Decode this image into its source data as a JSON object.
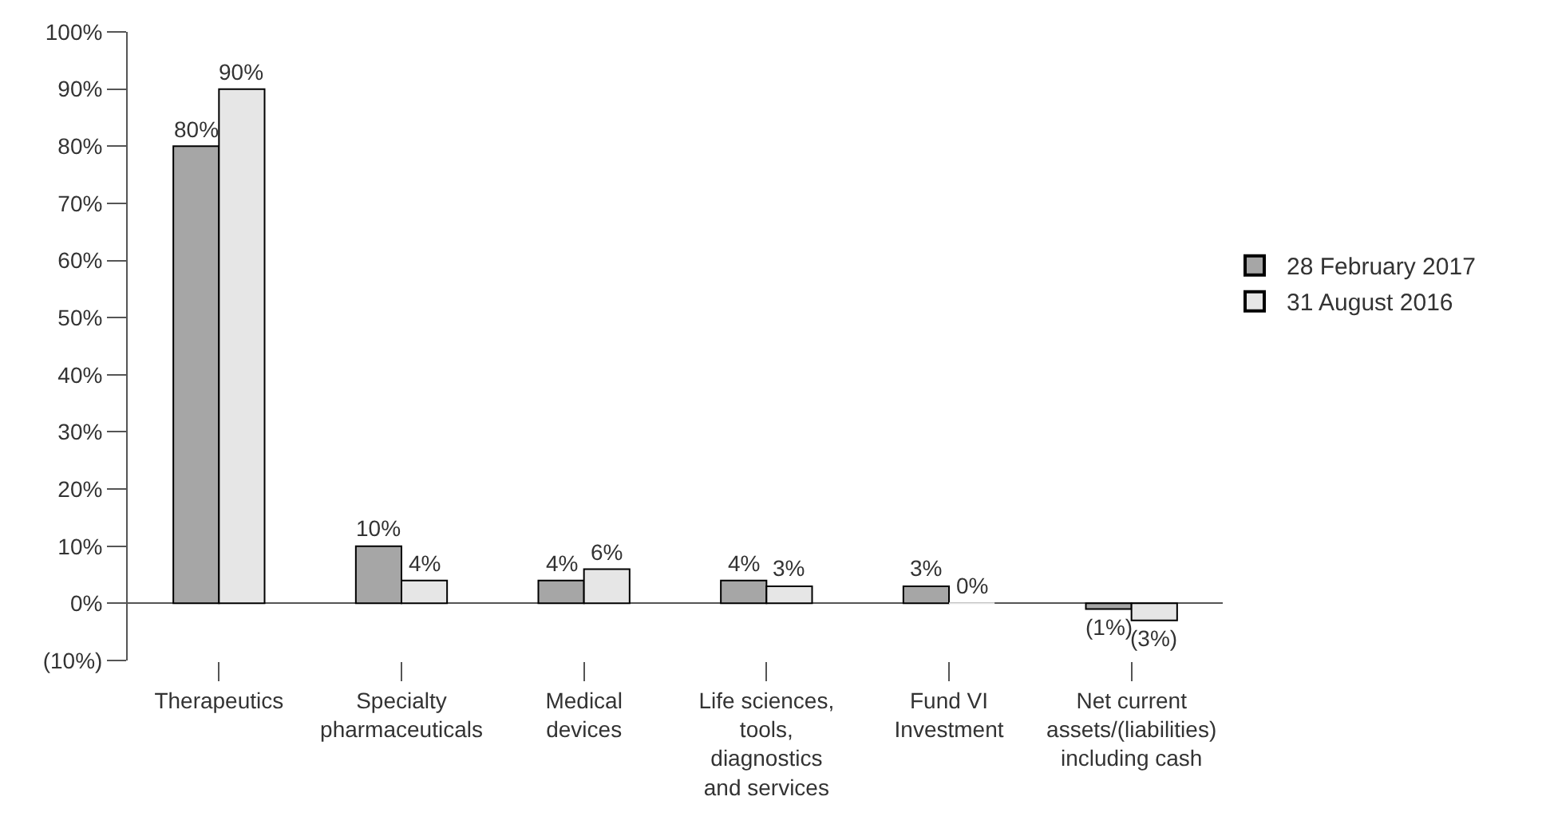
{
  "chart_data": {
    "type": "bar",
    "categories": [
      "Therapeutics",
      "Specialty pharmaceuticals",
      "Medical devices",
      "Life sciences, tools, diagnostics and services",
      "Fund VI Investment",
      "Net current assets/(liabilities) including cash"
    ],
    "series": [
      {
        "name": "28 February 2017",
        "color": "#a6a6a6",
        "values": [
          80,
          10,
          4,
          4,
          3,
          -1
        ],
        "value_labels": [
          "80%",
          "10%",
          "4%",
          "4%",
          "3%",
          "(1%)"
        ]
      },
      {
        "name": "31 August 2016",
        "color": "#e6e6e6",
        "values": [
          90,
          4,
          6,
          3,
          0,
          -3
        ],
        "value_labels": [
          "90%",
          "4%",
          "6%",
          "3%",
          "0%",
          "(3%)"
        ]
      }
    ],
    "ylim": [
      -10,
      100
    ],
    "yticks": [
      {
        "value": -10,
        "label": "(10%)"
      },
      {
        "value": 0,
        "label": "0%"
      },
      {
        "value": 10,
        "label": "10%"
      },
      {
        "value": 20,
        "label": "20%"
      },
      {
        "value": 30,
        "label": "30%"
      },
      {
        "value": 40,
        "label": "40%"
      },
      {
        "value": 50,
        "label": "50%"
      },
      {
        "value": 60,
        "label": "60%"
      },
      {
        "value": 70,
        "label": "70%"
      },
      {
        "value": 80,
        "label": "80%"
      },
      {
        "value": 90,
        "label": "90%"
      },
      {
        "value": 100,
        "label": "100%"
      }
    ],
    "legend": "right"
  }
}
